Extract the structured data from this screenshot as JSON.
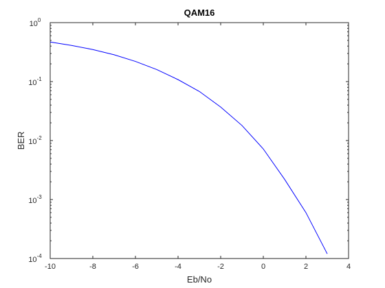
{
  "chart_data": {
    "type": "line",
    "title": "QAM16",
    "xlabel": "Eb/No",
    "ylabel": "BER",
    "xlim": [
      -10,
      4
    ],
    "ylim": [
      0.0001,
      1
    ],
    "yscale": "log",
    "grid": false,
    "x_ticks": [
      -10,
      -8,
      -6,
      -4,
      -2,
      0,
      2,
      4
    ],
    "y_ticks": [
      {
        "value": 1,
        "base": "10",
        "exp": "0"
      },
      {
        "value": 0.1,
        "base": "10",
        "exp": "-1"
      },
      {
        "value": 0.01,
        "base": "10",
        "exp": "-2"
      },
      {
        "value": 0.001,
        "base": "10",
        "exp": "-3"
      },
      {
        "value": 0.0001,
        "base": "10",
        "exp": "-4"
      }
    ],
    "series": [
      {
        "color": "#0000ff",
        "x": [
          -10,
          -9,
          -8,
          -7,
          -6,
          -5,
          -4,
          -3,
          -2,
          -1,
          0,
          1,
          2,
          3
        ],
        "y": [
          0.47,
          0.41,
          0.35,
          0.285,
          0.22,
          0.16,
          0.108,
          0.068,
          0.037,
          0.018,
          0.0072,
          0.0022,
          0.0006,
          0.00012
        ]
      }
    ]
  }
}
